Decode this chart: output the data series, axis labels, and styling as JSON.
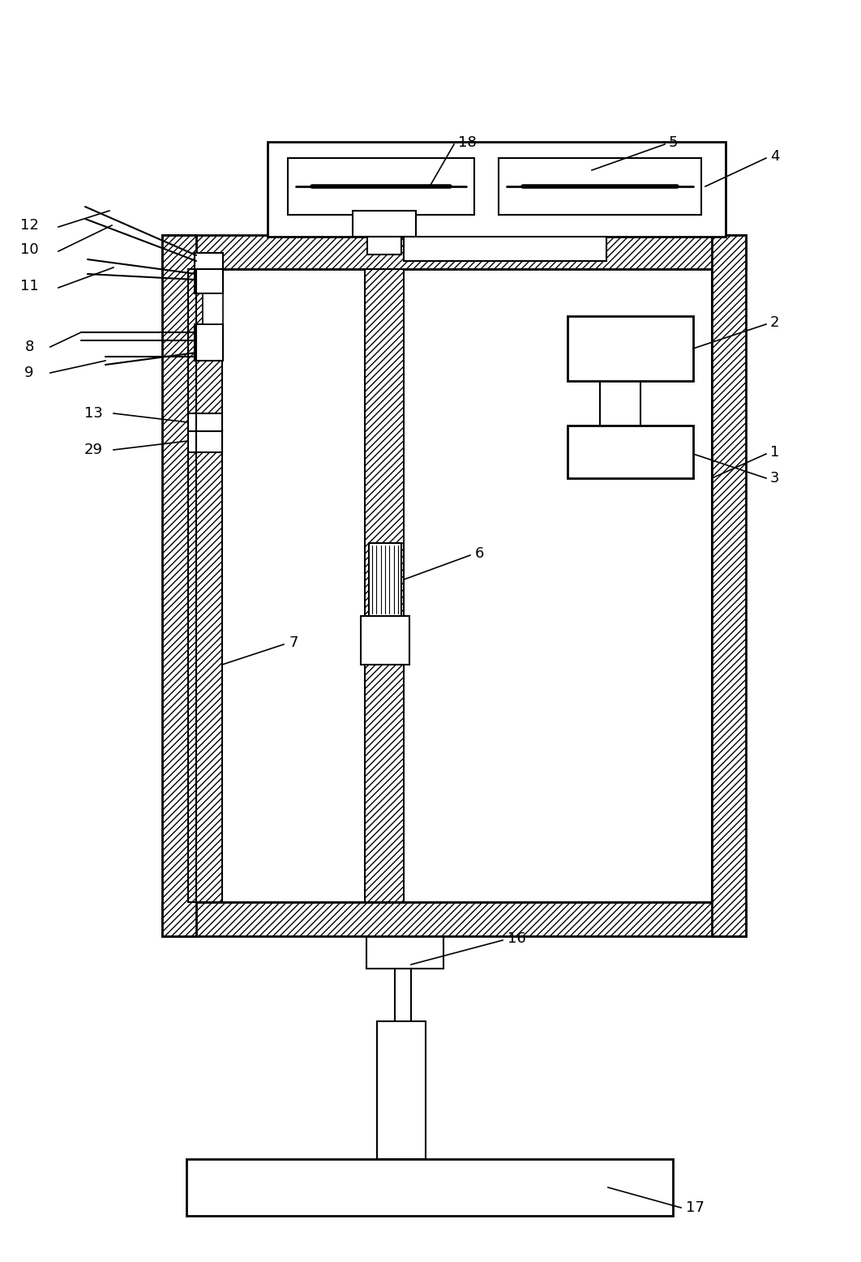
{
  "bg_color": "#ffffff",
  "line_color": "#000000",
  "fig_width": 10.62,
  "fig_height": 15.57,
  "dpi": 100
}
